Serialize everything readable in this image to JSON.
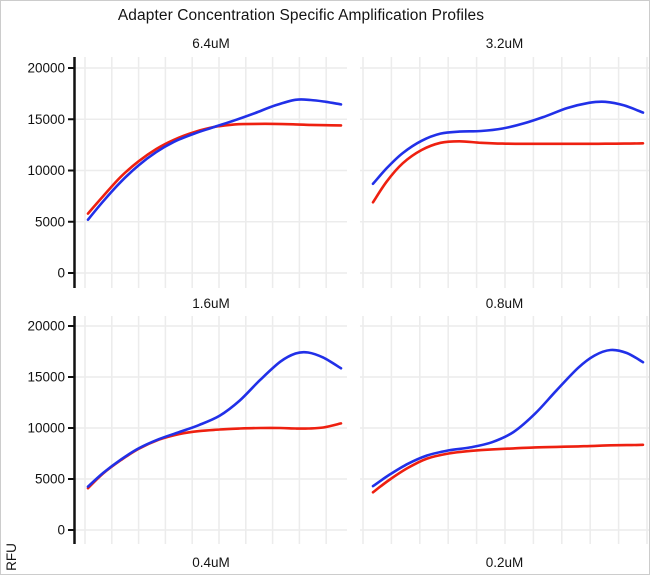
{
  "title": "Adapter Concentration Specific Amplification Profiles",
  "ylabel": "RFU",
  "colors": {
    "blue": "#2130e8",
    "red": "#ee2010",
    "grid": "#ececec",
    "axis": "#111111",
    "text": "#141414"
  },
  "chart_data": {
    "type": "line",
    "title": "Adapter Concentration Specific Amplification Profiles",
    "ylabel": "RFU",
    "xlabel": "",
    "ylim": [
      0,
      20000
    ],
    "y_ticks": [
      0,
      5000,
      10000,
      15000,
      20000
    ],
    "grid": true,
    "legend": "none",
    "x_note": "x axis unlabeled in view; x given as 0-1 fraction of panel range",
    "facets": [
      {
        "label": "6.4uM",
        "series": [
          {
            "name": "red",
            "color": "red",
            "x": [
              0,
              0.06,
              0.13,
              0.2,
              0.27,
              0.34,
              0.42,
              0.5,
              0.58,
              0.66,
              0.74,
              0.82,
              0.88,
              0.94,
              1.0
            ],
            "y": [
              5800,
              7500,
              9400,
              10900,
              12100,
              13000,
              13750,
              14250,
              14500,
              14550,
              14550,
              14500,
              14450,
              14420,
              14400
            ]
          },
          {
            "name": "blue",
            "color": "blue",
            "x": [
              0,
              0.06,
              0.13,
              0.2,
              0.27,
              0.34,
              0.42,
              0.5,
              0.58,
              0.66,
              0.74,
              0.82,
              0.88,
              0.94,
              1.0
            ],
            "y": [
              5200,
              7000,
              8900,
              10500,
              11800,
              12800,
              13600,
              14250,
              14900,
              15600,
              16350,
              16900,
              16880,
              16700,
              16450
            ]
          }
        ]
      },
      {
        "label": "3.2uM",
        "series": [
          {
            "name": "red",
            "color": "red",
            "x": [
              0,
              0.05,
              0.11,
              0.18,
              0.25,
              0.32,
              0.4,
              0.48,
              0.56,
              0.64,
              0.72,
              0.8,
              0.86,
              0.93,
              1.0
            ],
            "y": [
              6900,
              8900,
              10700,
              12000,
              12700,
              12850,
              12700,
              12620,
              12600,
              12600,
              12600,
              12600,
              12610,
              12620,
              12650
            ]
          },
          {
            "name": "blue",
            "color": "blue",
            "x": [
              0,
              0.05,
              0.11,
              0.18,
              0.25,
              0.32,
              0.4,
              0.48,
              0.56,
              0.64,
              0.72,
              0.8,
              0.86,
              0.93,
              1.0
            ],
            "y": [
              8700,
              10200,
              11700,
              12900,
              13600,
              13800,
              13850,
              14100,
              14600,
              15300,
              16100,
              16600,
              16700,
              16350,
              15650
            ]
          }
        ]
      },
      {
        "label": "1.6uM",
        "series": [
          {
            "name": "red",
            "color": "red",
            "x": [
              0,
              0.06,
              0.13,
              0.2,
              0.28,
              0.36,
              0.44,
              0.52,
              0.6,
              0.68,
              0.76,
              0.82,
              0.87,
              0.93,
              1.0
            ],
            "y": [
              4100,
              5550,
              6850,
              7950,
              8850,
              9400,
              9700,
              9850,
              9950,
              10000,
              10000,
              9950,
              9950,
              10050,
              10450
            ]
          },
          {
            "name": "blue",
            "color": "blue",
            "x": [
              0,
              0.06,
              0.13,
              0.2,
              0.28,
              0.36,
              0.44,
              0.52,
              0.6,
              0.68,
              0.76,
              0.82,
              0.87,
              0.93,
              1.0
            ],
            "y": [
              4250,
              5600,
              6900,
              8000,
              8900,
              9600,
              10300,
              11200,
              12700,
              14700,
              16500,
              17300,
              17400,
              16900,
              15850
            ]
          }
        ]
      },
      {
        "label": "0.8uM",
        "series": [
          {
            "name": "red",
            "color": "red",
            "x": [
              0,
              0.06,
              0.13,
              0.2,
              0.28,
              0.36,
              0.44,
              0.52,
              0.6,
              0.68,
              0.76,
              0.82,
              0.88,
              0.94,
              1.0
            ],
            "y": [
              3700,
              4900,
              6100,
              7000,
              7500,
              7750,
              7900,
              8000,
              8100,
              8150,
              8200,
              8250,
              8300,
              8320,
              8350
            ]
          },
          {
            "name": "blue",
            "color": "blue",
            "x": [
              0,
              0.06,
              0.13,
              0.2,
              0.28,
              0.36,
              0.44,
              0.52,
              0.6,
              0.68,
              0.76,
              0.82,
              0.88,
              0.94,
              1.0
            ],
            "y": [
              4300,
              5400,
              6500,
              7300,
              7800,
              8100,
              8600,
              9600,
              11400,
              13700,
              15900,
              17100,
              17650,
              17350,
              16450
            ]
          }
        ]
      },
      {
        "label": "0.4uM",
        "series": []
      },
      {
        "label": "0.2uM",
        "series": []
      }
    ]
  }
}
